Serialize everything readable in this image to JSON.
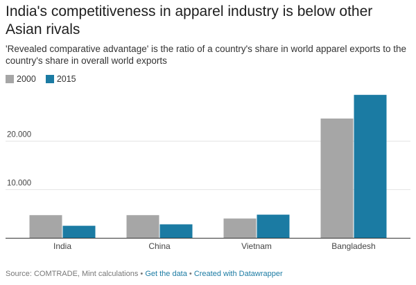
{
  "title": "India's competitiveness in apparel industry is below other Asian rivals",
  "subtitle": "'Revealed comparative advantage' is the ratio of a country's share in world apparel exports to the country's share in overall world exports",
  "footer": {
    "source": "Source: COMTRADE, Mint calculations",
    "sep1": " • ",
    "get_data": "Get the data",
    "sep2": " • ",
    "created": "Created with Datawrapper"
  },
  "chart_data": {
    "type": "bar",
    "categories": [
      "India",
      "China",
      "Vietnam",
      "Bangladesh"
    ],
    "series": [
      {
        "name": "2000",
        "color": "#a6a6a6",
        "values": [
          4.7,
          4.7,
          4.0,
          24.7
        ]
      },
      {
        "name": "2015",
        "color": "#1b7ba3",
        "values": [
          2.5,
          2.8,
          4.8,
          29.6
        ]
      }
    ],
    "yticks": [
      {
        "value": 10,
        "label": "10.000"
      },
      {
        "value": 20,
        "label": "20.000"
      }
    ],
    "ylim": [
      0,
      30
    ],
    "grid": true,
    "legend": "top-left"
  }
}
